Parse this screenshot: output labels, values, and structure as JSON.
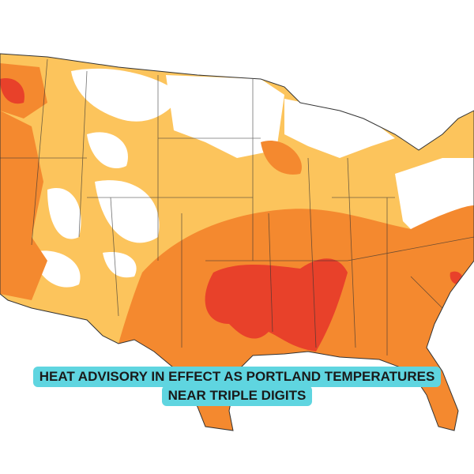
{
  "caption": {
    "lines": [
      "HEAT ADVISORY IN EFFECT AS PORTLAND TEMPERATURES",
      "NEAR TRIPLE DIGITS"
    ]
  }
}
